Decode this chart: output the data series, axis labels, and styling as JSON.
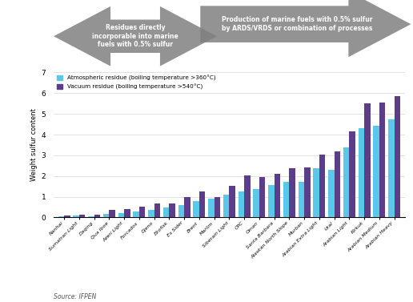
{
  "categories": [
    "Nanhai",
    "Sumatran Light",
    "Daqing",
    "Qua Iboe",
    "Azeri Light",
    "Forcados",
    "Djeno",
    "Ekofisk",
    "Es Sider",
    "Brent",
    "Marlim",
    "Siberain Light",
    "CPC",
    "Oman",
    "Santa Barbara",
    "Alaskan North Slope",
    "Murban",
    "Arabian Extra Light",
    "Ural",
    "Arabian Light",
    "Kirkuk",
    "Arabian Medium",
    "Arabian Heavy"
  ],
  "atmospheric": [
    0.04,
    0.1,
    0.07,
    0.18,
    0.22,
    0.28,
    0.38,
    0.5,
    0.6,
    0.78,
    0.92,
    1.1,
    1.25,
    1.38,
    1.58,
    1.7,
    1.73,
    2.38,
    2.3,
    3.4,
    4.32,
    4.43,
    4.72
  ],
  "vacuum": [
    0.08,
    0.12,
    0.13,
    0.35,
    0.4,
    0.52,
    0.68,
    0.68,
    1.0,
    1.25,
    1.0,
    1.53,
    2.02,
    1.95,
    2.12,
    2.38,
    2.42,
    3.05,
    3.18,
    4.15,
    5.52,
    5.53,
    5.85
  ],
  "atm_color": "#5bc8e8",
  "vac_color": "#5b3d8a",
  "arrow_color": "#808080",
  "ylabel": "Weight sulfur content",
  "ylim": [
    0,
    7
  ],
  "yticks": [
    0,
    1,
    2,
    3,
    4,
    5,
    6,
    7
  ],
  "arrow1_text": "Residues directly\nincorporable into marine\nfuels with 0.5% sulfur",
  "arrow2_text": "Production of marine fuels with 0.5% sulfur\nby ARDS/VRDS or combination of processes",
  "legend1": "Atmospheric residue (boiling temperature >360°C)",
  "legend2": "Vacuum residue (boiling temperature >540°C)",
  "source": "Source: IFPEN",
  "bg_color": "#ffffff"
}
